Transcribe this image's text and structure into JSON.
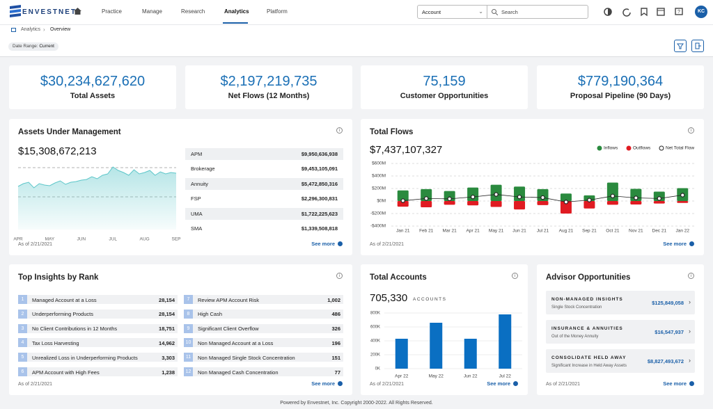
{
  "header": {
    "logo": "ENVESTNET",
    "nav": [
      "Practice",
      "Manage",
      "Research",
      "Analytics",
      "Platform"
    ],
    "active_nav": 3,
    "account_select": "Account",
    "search_placeholder": "Search",
    "avatar": "KC"
  },
  "breadcrumb": [
    "Analytics",
    "Overview"
  ],
  "date_range": {
    "label": "Date Range:",
    "value": "Current"
  },
  "kpis": [
    {
      "value": "$30,234,627,620",
      "label": "Total Assets"
    },
    {
      "value": "$2,197,219,735",
      "label": "Net Flows (12 Months)"
    },
    {
      "value": "75,159",
      "label": "Customer Opportunities"
    },
    {
      "value": "$779,190,364",
      "label": "Proposal Pipeline (90 Days)"
    }
  ],
  "aum": {
    "title": "Assets Under Management",
    "total": "$15,308,672,213",
    "chart": {
      "type": "area",
      "color": "#5cc6c9",
      "categories": [
        "APR",
        null,
        null,
        null,
        null,
        null,
        "MAY",
        null,
        null,
        null,
        null,
        null,
        "JUN",
        null,
        null,
        null,
        null,
        null,
        "JUL",
        null,
        null,
        null,
        null,
        null,
        "AUG",
        null,
        null,
        null,
        null,
        null,
        "SEP"
      ],
      "values": [
        62,
        66,
        68,
        60,
        66,
        64,
        63,
        67,
        70,
        65,
        68,
        69,
        71,
        72,
        76,
        73,
        78,
        80,
        90,
        85,
        82,
        78,
        86,
        80,
        82,
        85,
        78,
        83,
        80,
        82,
        81
      ],
      "ylim": [
        0,
        100
      ]
    },
    "table": [
      [
        "APM",
        "$9,950,636,938"
      ],
      [
        "Brokerage",
        "$9,453,105,091"
      ],
      [
        "Annuity",
        "$5,472,850,316"
      ],
      [
        "FSP",
        "$2,296,300,831"
      ],
      [
        "UMA",
        "$1,722,225,623"
      ],
      [
        "SMA",
        "$1,339,508,818"
      ]
    ],
    "as_of": "As of 2/21/2021",
    "see_more": "See more"
  },
  "flows": {
    "title": "Total Flows",
    "total": "$7,437,107,327",
    "chart": {
      "type": "bar",
      "categories": [
        "Jan 21",
        "Feb 21",
        "Mar 21",
        "Apr 21",
        "May 21",
        "Jun 21",
        "Jul 21",
        "Aug 21",
        "Sep 21",
        "Oct 21",
        "Nov 21",
        "Dec 21",
        "Jan 22"
      ],
      "series": [
        {
          "name": "Inflows",
          "color": "#2a8a3e",
          "values": [
            170,
            190,
            160,
            215,
            260,
            230,
            190,
            120,
            90,
            295,
            195,
            150,
            205
          ]
        },
        {
          "name": "Outflows",
          "color": "#e01b22",
          "values": [
            -90,
            -100,
            -60,
            -70,
            -95,
            -135,
            -65,
            -200,
            -120,
            -60,
            -55,
            -40,
            -30
          ]
        },
        {
          "name": "Net Total Flow",
          "type": "line",
          "color": "#222222",
          "values": [
            5,
            40,
            35,
            65,
            105,
            65,
            55,
            -15,
            15,
            80,
            50,
            40,
            95
          ]
        }
      ],
      "ylim": [
        -400,
        600
      ],
      "yticks": [
        {
          "value": -400,
          "label": "-$400M"
        },
        {
          "value": -200,
          "label": "-$200M"
        },
        {
          "value": 0,
          "label": "$0M"
        },
        {
          "value": 200,
          "label": "$200M"
        },
        {
          "value": 400,
          "label": "$400M"
        },
        {
          "value": 600,
          "label": "$600M"
        }
      ],
      "grid": true
    },
    "as_of": "As of 2/21/2021",
    "see_more": "See more"
  },
  "insights": {
    "title": "Top Insights by Rank",
    "items": [
      {
        "rank": "1",
        "label": "Managed Account at a Loss",
        "value": "28,154"
      },
      {
        "rank": "2",
        "label": "Underperforming Products",
        "value": "28,154"
      },
      {
        "rank": "3",
        "label": "No Client Contributions in 12 Months",
        "value": "18,751"
      },
      {
        "rank": "4",
        "label": "Tax Loss Harvesting",
        "value": "14,962"
      },
      {
        "rank": "5",
        "label": "Unrealized Loss in Underperforming Products",
        "value": "3,303"
      },
      {
        "rank": "6",
        "label": "APM Account with High Fees",
        "value": "1,238"
      },
      {
        "rank": "7",
        "label": "Review APM Account Risk",
        "value": "1,002"
      },
      {
        "rank": "8",
        "label": "High Cash",
        "value": "486"
      },
      {
        "rank": "9",
        "label": "Significant Client Overflow",
        "value": "326"
      },
      {
        "rank": "10",
        "label": "Non Managed Account at a Loss",
        "value": "196"
      },
      {
        "rank": "11",
        "label": "Non Managed Single Stock Concentration",
        "value": "151"
      },
      {
        "rank": "12",
        "label": "Non Managed Cash Concentration",
        "value": "77"
      }
    ],
    "as_of": "As of 2/21/2021",
    "see_more": "See more"
  },
  "accounts": {
    "title": "Total Accounts",
    "total": "705,330",
    "unit": "ACCOUNTS",
    "chart": {
      "type": "bar",
      "color": "#0a6fc2",
      "categories": [
        "Apr 22",
        "May 22",
        "Jun 22",
        "Jul 22"
      ],
      "values": [
        430,
        660,
        430,
        780
      ],
      "ylim": [
        0,
        800
      ],
      "yticks": [
        {
          "value": 0,
          "label": "0K"
        },
        {
          "value": 200,
          "label": "200K"
        },
        {
          "value": 400,
          "label": "400K"
        },
        {
          "value": 600,
          "label": "600K"
        },
        {
          "value": 800,
          "label": "800K"
        }
      ],
      "grid": true
    },
    "as_of": "As of 2/21/2021",
    "see_more": "See more"
  },
  "advisor": {
    "title": "Advisor Opportunities",
    "items": [
      {
        "title": "NON-MANAGED INSIGHTS",
        "subtitle": "Single Stock Concentration",
        "value": "$125,849,058"
      },
      {
        "title": "INSURANCE & ANNUITIES",
        "subtitle": "Out of the Money Annuity",
        "value": "$16,547,937"
      },
      {
        "title": "CONSOLIDATE HELD AWAY",
        "subtitle": "Significant Increase in Held Away Assets",
        "value": "$8,827,493,672"
      }
    ],
    "as_of": "As of 2/21/2021",
    "see_more": "See more"
  },
  "footer": "Powered by Envestnet, Inc. Copyright 2000-2022. All Rights Reserved."
}
